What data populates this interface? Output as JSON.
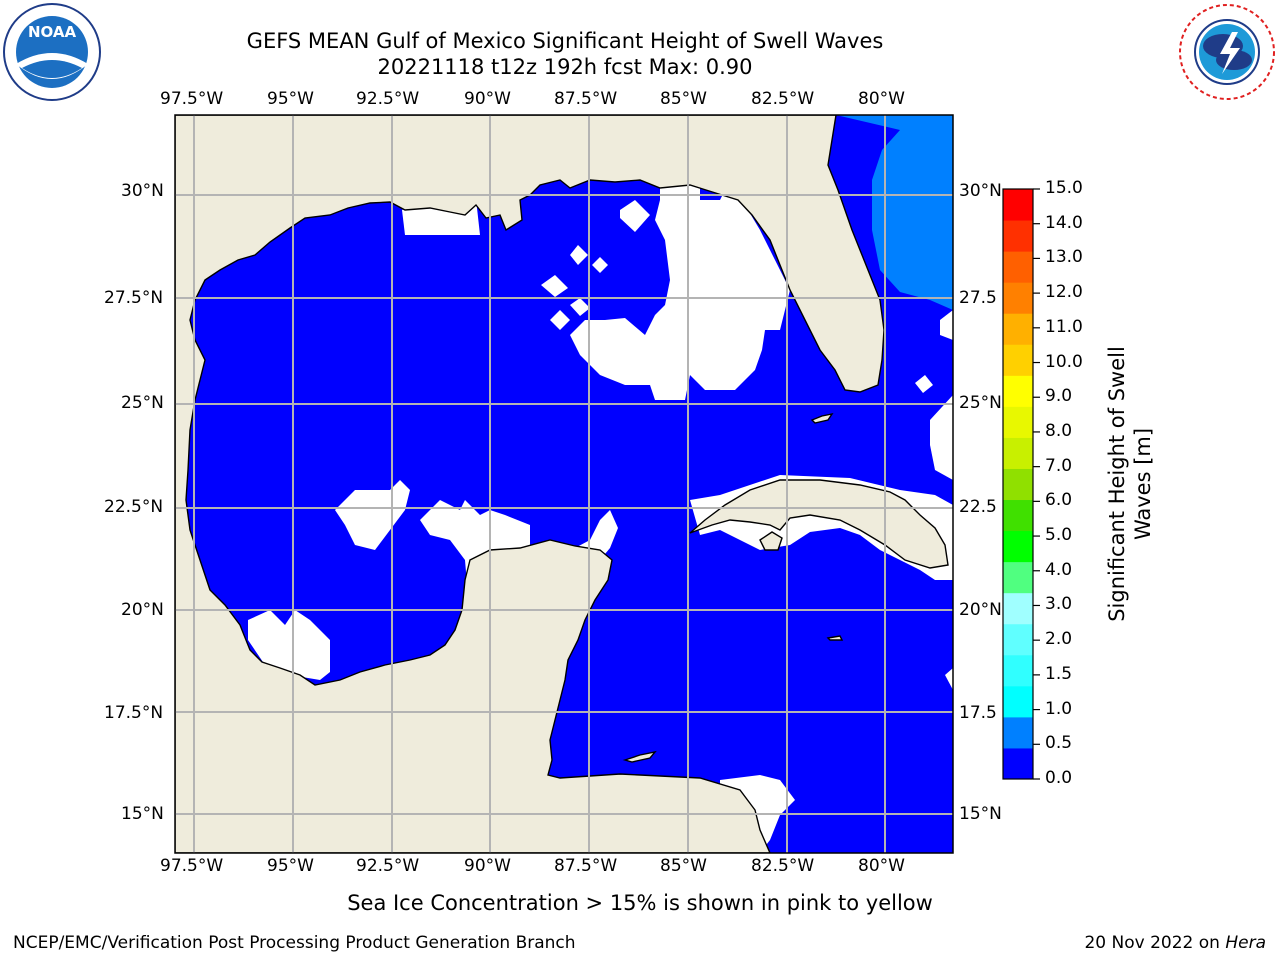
{
  "header": {
    "title_line1": "GEFS MEAN Gulf of Mexico Significant Height of Swell Waves",
    "title_line2": "20221118 t12z 192h fcst   Max: 0.90"
  },
  "logos": {
    "noaa": {
      "text": "NOAA",
      "ring_text": "NATIONAL OCEANIC AND ATMOSPHERIC ADMINISTRATION · U.S. DEPARTMENT OF COMMERCE"
    },
    "nws": {
      "ring_text": "NATIONAL WEATHER SERVICE"
    }
  },
  "map": {
    "lon_labels": [
      "97.5°W",
      "95°W",
      "92.5°W",
      "90°W",
      "87.5°W",
      "85°W",
      "82.5°W",
      "80°W"
    ],
    "lat_labels_left": [
      "30°N",
      "27.5°N",
      "25°N",
      "22.5°N",
      "20°N",
      "17.5°N",
      "15°N"
    ],
    "lat_labels_right": [
      "30°N",
      "27.5",
      "25°N",
      "22.5",
      "20°N",
      "17.5",
      "15°N"
    ],
    "land_color": "#efecdc",
    "grid_color": "#b4b4b4"
  },
  "colorbar": {
    "label": "Significant Height of Swell Waves [m]",
    "label_line1": "Significant Height of Swell",
    "label_line2": "Waves [m]",
    "ticks": [
      "0.0",
      "0.5",
      "1.0",
      "1.5",
      "2.0",
      "3.0",
      "4.0",
      "5.0",
      "6.0",
      "7.0",
      "8.0",
      "9.0",
      "10.0",
      "11.0",
      "12.0",
      "13.0",
      "14.0",
      "15.0"
    ],
    "colors": [
      "#0000ff",
      "#0080ff",
      "#00ffff",
      "#30ffff",
      "#60ffff",
      "#a0ffff",
      "#50ff80",
      "#00ff00",
      "#40e000",
      "#90e000",
      "#c8f000",
      "#e8f800",
      "#ffff00",
      "#ffd000",
      "#ffb000",
      "#ff8000",
      "#ff6000",
      "#ff3000",
      "#ff0000"
    ]
  },
  "notes": {
    "sea_ice": "Sea Ice Concentration > 15% is shown in pink to yellow"
  },
  "footer": {
    "left": "NCEP/EMC/Verification Post Processing Product Generation Branch",
    "right_prefix": "20 Nov 2022 on ",
    "right_host": "Hera"
  }
}
